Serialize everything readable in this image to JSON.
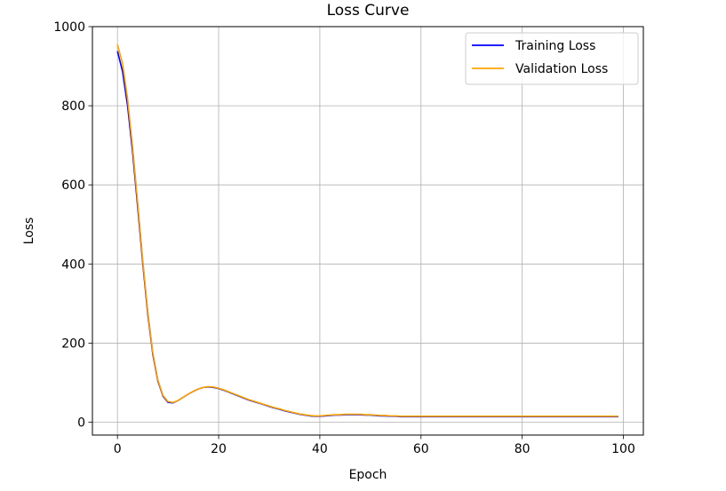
{
  "chart_data": {
    "type": "line",
    "title": "Loss Curve",
    "xlabel": "Epoch",
    "ylabel": "Loss",
    "xlim": [
      -4.95,
      103.95
    ],
    "ylim": [
      -32.5,
      1000
    ],
    "xticks": [
      0,
      20,
      40,
      60,
      80,
      100
    ],
    "yticks": [
      0,
      200,
      400,
      600,
      800,
      1000
    ],
    "grid": true,
    "legend_position": "upper right",
    "series": [
      {
        "name": "Training Loss",
        "color": "#0000ff",
        "x": [
          0,
          1,
          2,
          3,
          4,
          5,
          6,
          7,
          8,
          9,
          10,
          11,
          12,
          13,
          14,
          15,
          16,
          17,
          18,
          19,
          20,
          21,
          22,
          23,
          24,
          25,
          26,
          27,
          28,
          29,
          30,
          31,
          32,
          33,
          34,
          35,
          36,
          37,
          38,
          39,
          40,
          41,
          42,
          43,
          44,
          45,
          46,
          47,
          48,
          49,
          50,
          51,
          52,
          53,
          54,
          55,
          56,
          57,
          58,
          59,
          60,
          61,
          62,
          63,
          64,
          65,
          66,
          67,
          68,
          69,
          70,
          71,
          72,
          73,
          74,
          75,
          76,
          77,
          78,
          79,
          80,
          81,
          82,
          83,
          84,
          85,
          86,
          87,
          88,
          89,
          90,
          91,
          92,
          93,
          94,
          95,
          96,
          97,
          98,
          99
        ],
        "y": [
          938,
          887,
          800,
          682,
          544,
          402,
          273,
          171,
          104,
          66,
          50,
          49,
          55,
          63,
          71,
          78,
          84,
          88,
          89,
          88,
          85,
          81,
          76,
          71,
          66,
          61,
          56,
          52,
          48,
          44,
          40,
          36,
          33,
          29,
          26,
          23,
          20,
          18,
          16,
          15,
          15,
          16,
          17,
          18,
          18,
          19,
          19,
          19,
          19,
          18,
          18,
          17,
          16,
          16,
          15,
          15,
          14,
          14,
          14,
          14,
          14,
          14,
          14,
          14,
          14,
          14,
          14,
          14,
          14,
          14,
          14,
          14,
          14,
          14,
          14,
          14,
          14,
          14,
          14,
          14,
          14,
          14,
          14,
          14,
          14,
          14,
          14,
          14,
          14,
          14,
          14,
          14,
          14,
          14,
          14,
          14,
          14,
          14,
          14,
          14
        ]
      },
      {
        "name": "Validation Loss",
        "color": "#ffa500",
        "x": [
          0,
          1,
          2,
          3,
          4,
          5,
          6,
          7,
          8,
          9,
          10,
          11,
          12,
          13,
          14,
          15,
          16,
          17,
          18,
          19,
          20,
          21,
          22,
          23,
          24,
          25,
          26,
          27,
          28,
          29,
          30,
          31,
          32,
          33,
          34,
          35,
          36,
          37,
          38,
          39,
          40,
          41,
          42,
          43,
          44,
          45,
          46,
          47,
          48,
          49,
          50,
          51,
          52,
          53,
          54,
          55,
          56,
          57,
          58,
          59,
          60,
          61,
          62,
          63,
          64,
          65,
          66,
          67,
          68,
          69,
          70,
          71,
          72,
          73,
          74,
          75,
          76,
          77,
          78,
          79,
          80,
          81,
          82,
          83,
          84,
          85,
          86,
          87,
          88,
          89,
          90,
          91,
          92,
          93,
          94,
          95,
          96,
          97,
          98,
          99
        ],
        "y": [
          955,
          908,
          818,
          696,
          556,
          411,
          280,
          176,
          107,
          68,
          52,
          50,
          55,
          63,
          71,
          78,
          84,
          88,
          90,
          89,
          86,
          82,
          77,
          72,
          67,
          62,
          57,
          53,
          49,
          45,
          41,
          37,
          34,
          30,
          27,
          24,
          21,
          19,
          17,
          16,
          16,
          17,
          18,
          19,
          19,
          20,
          20,
          20,
          20,
          19,
          19,
          18,
          17,
          17,
          16,
          16,
          15,
          15,
          15,
          15,
          15,
          15,
          15,
          15,
          15,
          15,
          15,
          15,
          15,
          15,
          15,
          15,
          15,
          15,
          15,
          15,
          15,
          15,
          15,
          15,
          15,
          15,
          15,
          15,
          15,
          15,
          15,
          15,
          15,
          15,
          15,
          15,
          15,
          15,
          15,
          15,
          15,
          15,
          15,
          15
        ]
      }
    ]
  }
}
